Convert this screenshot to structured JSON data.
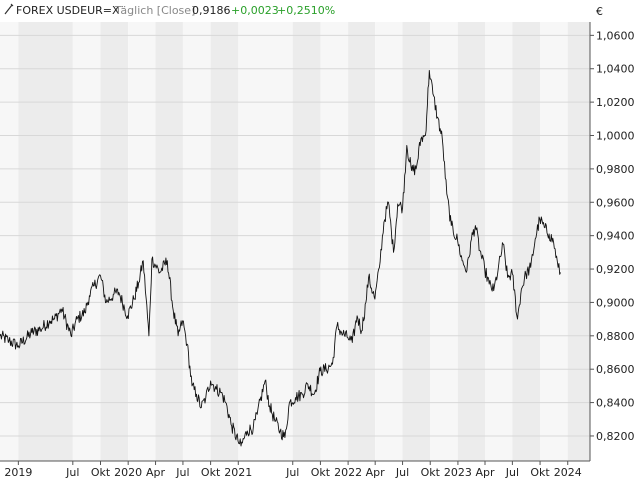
{
  "header": {
    "symbol": "FOREX USDEUR=X",
    "mode": "Täglich [Close]",
    "last": "0,9186",
    "change": "+0,0023",
    "change_pct": "+0,2510%"
  },
  "currency_symbol": "€",
  "colors": {
    "line": "#111111",
    "band_light": "#f7f7f7",
    "band_dark": "#ececec",
    "grid": "#d8d8d8",
    "positive": "#2aa02a"
  },
  "chart_data": {
    "type": "line",
    "title": "",
    "xlabel": "",
    "ylabel": "",
    "ylim": [
      0.805,
      1.068
    ],
    "xlim": [
      "2018-11-01",
      "2024-03-15"
    ],
    "y_ticks": [
      {
        "value": 0.82,
        "label": "0,8200"
      },
      {
        "value": 0.84,
        "label": "0,8400"
      },
      {
        "value": 0.86,
        "label": "0,8600"
      },
      {
        "value": 0.88,
        "label": "0,8800"
      },
      {
        "value": 0.9,
        "label": "0,9000"
      },
      {
        "value": 0.92,
        "label": "0,9200"
      },
      {
        "value": 0.94,
        "label": "0,9400"
      },
      {
        "value": 0.96,
        "label": "0,9600"
      },
      {
        "value": 0.98,
        "label": "0,9800"
      },
      {
        "value": 1.0,
        "label": "1,0000"
      },
      {
        "value": 1.02,
        "label": "1,0200"
      },
      {
        "value": 1.04,
        "label": "1,0400"
      },
      {
        "value": 1.06,
        "label": "1,0600"
      }
    ],
    "x_ticks": [
      {
        "date": "2019-01-01",
        "label": "2019"
      },
      {
        "date": "2019-07-01",
        "label": "Jul"
      },
      {
        "date": "2019-10-01",
        "label": "Okt"
      },
      {
        "date": "2020-01-01",
        "label": "2020"
      },
      {
        "date": "2020-04-01",
        "label": "Apr"
      },
      {
        "date": "2020-07-01",
        "label": "Jul"
      },
      {
        "date": "2020-10-01",
        "label": "Okt"
      },
      {
        "date": "2021-01-01",
        "label": "2021"
      },
      {
        "date": "2021-07-01",
        "label": "Jul"
      },
      {
        "date": "2021-10-01",
        "label": "Okt"
      },
      {
        "date": "2022-01-01",
        "label": "2022"
      },
      {
        "date": "2022-04-01",
        "label": "Apr"
      },
      {
        "date": "2022-07-01",
        "label": "Jul"
      },
      {
        "date": "2022-10-01",
        "label": "Okt"
      },
      {
        "date": "2023-01-01",
        "label": "2023"
      },
      {
        "date": "2023-04-01",
        "label": "Apr"
      },
      {
        "date": "2023-07-01",
        "label": "Jul"
      },
      {
        "date": "2023-10-01",
        "label": "Okt"
      },
      {
        "date": "2024-01-01",
        "label": "2024"
      }
    ],
    "grid": true,
    "series": [
      {
        "points": [
          [
            "2018-11-01",
            0.88
          ],
          [
            "2018-12-01",
            0.877
          ],
          [
            "2019-01-01",
            0.874
          ],
          [
            "2019-02-15",
            0.882
          ],
          [
            "2019-03-15",
            0.884
          ],
          [
            "2019-04-15",
            0.889
          ],
          [
            "2019-05-01",
            0.89
          ],
          [
            "2019-05-25",
            0.896
          ],
          [
            "2019-06-25",
            0.88
          ],
          [
            "2019-07-15",
            0.89
          ],
          [
            "2019-08-10",
            0.894
          ],
          [
            "2019-08-25",
            0.904
          ],
          [
            "2019-09-10",
            0.91
          ],
          [
            "2019-10-01",
            0.916
          ],
          [
            "2019-10-20",
            0.9
          ],
          [
            "2019-11-15",
            0.905
          ],
          [
            "2019-12-01",
            0.906
          ],
          [
            "2019-12-30",
            0.892
          ],
          [
            "2020-01-20",
            0.902
          ],
          [
            "2020-02-05",
            0.912
          ],
          [
            "2020-02-20",
            0.925
          ],
          [
            "2020-03-10",
            0.88
          ],
          [
            "2020-03-20",
            0.926
          ],
          [
            "2020-04-15",
            0.918
          ],
          [
            "2020-05-10",
            0.925
          ],
          [
            "2020-05-30",
            0.895
          ],
          [
            "2020-06-15",
            0.88
          ],
          [
            "2020-06-30",
            0.889
          ],
          [
            "2020-07-15",
            0.875
          ],
          [
            "2020-07-31",
            0.85
          ],
          [
            "2020-08-15",
            0.845
          ],
          [
            "2020-08-31",
            0.837
          ],
          [
            "2020-09-15",
            0.843
          ],
          [
            "2020-10-01",
            0.853
          ],
          [
            "2020-10-20",
            0.848
          ],
          [
            "2020-11-05",
            0.846
          ],
          [
            "2020-11-20",
            0.84
          ],
          [
            "2020-12-10",
            0.826
          ],
          [
            "2020-12-31",
            0.817
          ],
          [
            "2021-01-10",
            0.814
          ],
          [
            "2021-01-31",
            0.823
          ],
          [
            "2021-02-20",
            0.825
          ],
          [
            "2021-03-05",
            0.833
          ],
          [
            "2021-03-31",
            0.853
          ],
          [
            "2021-04-15",
            0.838
          ],
          [
            "2021-05-01",
            0.83
          ],
          [
            "2021-05-20",
            0.823
          ],
          [
            "2021-06-05",
            0.819
          ],
          [
            "2021-06-20",
            0.84
          ],
          [
            "2021-07-10",
            0.843
          ],
          [
            "2021-08-01",
            0.845
          ],
          [
            "2021-08-20",
            0.851
          ],
          [
            "2021-09-10",
            0.845
          ],
          [
            "2021-09-30",
            0.859
          ],
          [
            "2021-10-20",
            0.86
          ],
          [
            "2021-11-10",
            0.863
          ],
          [
            "2021-11-25",
            0.886
          ],
          [
            "2021-12-10",
            0.882
          ],
          [
            "2021-12-31",
            0.879
          ],
          [
            "2022-01-15",
            0.876
          ],
          [
            "2022-01-31",
            0.892
          ],
          [
            "2022-02-15",
            0.883
          ],
          [
            "2022-03-01",
            0.9
          ],
          [
            "2022-03-10",
            0.915
          ],
          [
            "2022-03-31",
            0.902
          ],
          [
            "2022-04-15",
            0.921
          ],
          [
            "2022-04-30",
            0.948
          ],
          [
            "2022-05-15",
            0.96
          ],
          [
            "2022-06-01",
            0.93
          ],
          [
            "2022-06-15",
            0.959
          ],
          [
            "2022-07-01",
            0.957
          ],
          [
            "2022-07-15",
            0.994
          ],
          [
            "2022-07-31",
            0.979
          ],
          [
            "2022-08-15",
            0.98
          ],
          [
            "2022-08-31",
            0.998
          ],
          [
            "2022-09-15",
            1.0
          ],
          [
            "2022-09-28",
            1.039
          ],
          [
            "2022-10-10",
            1.025
          ],
          [
            "2022-10-25",
            1.011
          ],
          [
            "2022-11-10",
            0.998
          ],
          [
            "2022-11-25",
            0.965
          ],
          [
            "2022-12-10",
            0.946
          ],
          [
            "2022-12-31",
            0.937
          ],
          [
            "2023-01-15",
            0.925
          ],
          [
            "2023-01-31",
            0.919
          ],
          [
            "2023-02-15",
            0.938
          ],
          [
            "2023-02-28",
            0.946
          ],
          [
            "2023-03-15",
            0.931
          ],
          [
            "2023-03-31",
            0.92
          ],
          [
            "2023-04-15",
            0.911
          ],
          [
            "2023-04-30",
            0.907
          ],
          [
            "2023-05-15",
            0.92
          ],
          [
            "2023-05-31",
            0.935
          ],
          [
            "2023-06-15",
            0.915
          ],
          [
            "2023-07-01",
            0.917
          ],
          [
            "2023-07-18",
            0.89
          ],
          [
            "2023-07-31",
            0.908
          ],
          [
            "2023-08-15",
            0.917
          ],
          [
            "2023-08-31",
            0.921
          ],
          [
            "2023-09-15",
            0.938
          ],
          [
            "2023-09-30",
            0.95
          ],
          [
            "2023-10-15",
            0.945
          ],
          [
            "2023-10-31",
            0.941
          ],
          [
            "2023-11-15",
            0.936
          ],
          [
            "2023-11-30",
            0.921
          ],
          [
            "2023-12-08",
            0.918
          ]
        ]
      }
    ]
  }
}
